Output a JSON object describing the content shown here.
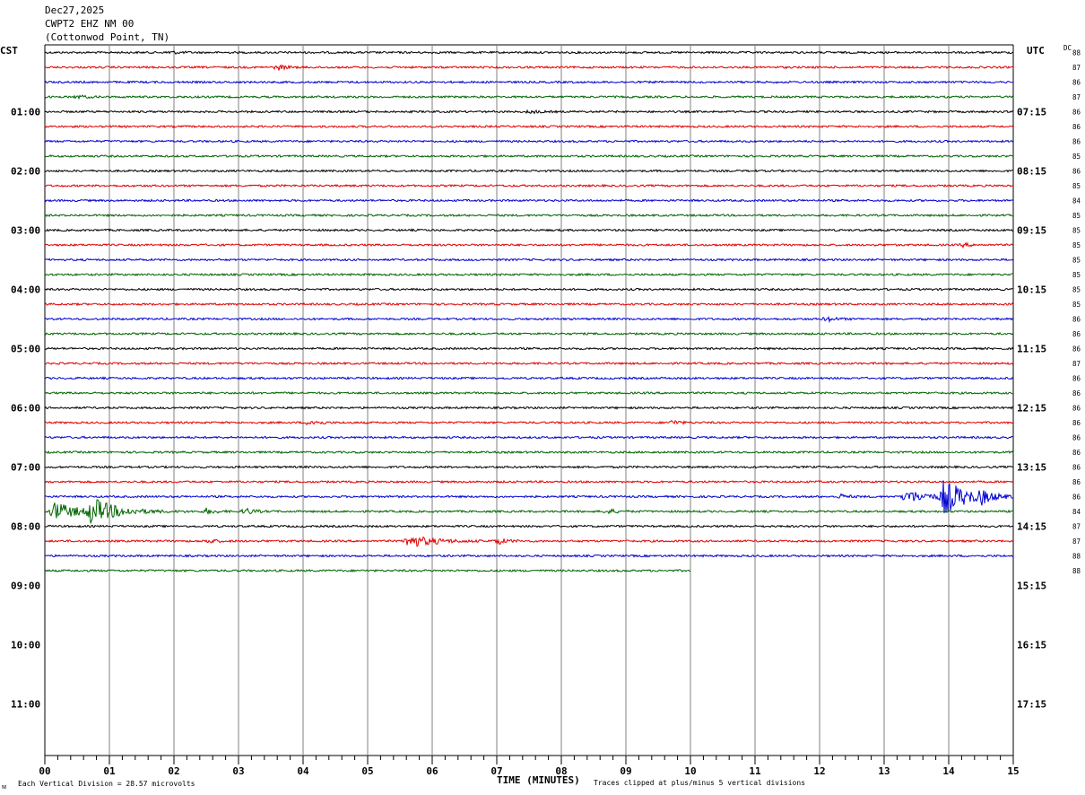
{
  "header": {
    "date": "Dec27,2025",
    "station": "CWPT2 EHZ NM 00",
    "location": "(Cottonwod Point, TN)"
  },
  "left_zone_label": "CST",
  "right_zone_label": "UTC",
  "dc_header": "DC",
  "footer": {
    "division_note": "Each Vertical Division =   28.57 microvolts",
    "clip_note": "Traces clipped at plus/minus 5 vertical divisions",
    "corner_mark": "ᴍ"
  },
  "colors": {
    "trace_cycle": [
      "#000000",
      "#e00000",
      "#0000d0",
      "#006400"
    ],
    "grid": "#808080",
    "frame": "#000000"
  },
  "chart_data": {
    "type": "line",
    "title": "",
    "xlabel": "TIME (MINUTES)",
    "ylabel": "",
    "x_ticks": [
      "00",
      "01",
      "02",
      "03",
      "04",
      "05",
      "06",
      "07",
      "08",
      "09",
      "10",
      "11",
      "12",
      "13",
      "14",
      "15"
    ],
    "xlim": [
      0,
      15
    ],
    "minutes_per_row": 15,
    "rows_total": 44,
    "rows_recorded": 36,
    "last_row_end_minute": 10,
    "cst_hour_labels": [
      "01:00",
      "02:00",
      "03:00",
      "04:00",
      "05:00",
      "06:00",
      "07:00",
      "08:00",
      "09:00",
      "10:00",
      "11:00"
    ],
    "utc_hour_labels": [
      "07:15",
      "08:15",
      "09:15",
      "10:15",
      "11:15",
      "12:15",
      "13:15",
      "14:15",
      "15:15",
      "16:15",
      "17:15"
    ],
    "dc_offsets": [
      "88",
      "87",
      "86",
      "87",
      "86",
      "86",
      "86",
      "85",
      "86",
      "85",
      "84",
      "85",
      "85",
      "85",
      "85",
      "85",
      "85",
      "85",
      "86",
      "86",
      "86",
      "87",
      "86",
      "86",
      "86",
      "86",
      "86",
      "86",
      "86",
      "86",
      "86",
      "84",
      "87",
      "87",
      "88",
      "88"
    ],
    "events": [
      {
        "row": 0,
        "minute": 1.9,
        "amplitude": 2
      },
      {
        "row": 1,
        "minute": 3.6,
        "amplitude": 3
      },
      {
        "row": 3,
        "minute": 0.5,
        "amplitude": 2
      },
      {
        "row": 4,
        "minute": 7.5,
        "amplitude": 2
      },
      {
        "row": 13,
        "minute": 14.2,
        "amplitude": 2
      },
      {
        "row": 18,
        "minute": 12.1,
        "amplitude": 3
      },
      {
        "row": 25,
        "minute": 4.1,
        "amplitude": 4
      },
      {
        "row": 25,
        "minute": 9.7,
        "amplitude": 3
      },
      {
        "row": 30,
        "minute": 12.3,
        "amplitude": 3
      },
      {
        "row": 30,
        "minute": 13.3,
        "amplitude": 8
      },
      {
        "row": 30,
        "minute": 13.9,
        "amplitude": 20
      },
      {
        "row": 30,
        "minute": 14.5,
        "amplitude": 6
      },
      {
        "row": 31,
        "minute": 0.1,
        "amplitude": 12
      },
      {
        "row": 31,
        "minute": 0.7,
        "amplitude": 15
      },
      {
        "row": 31,
        "minute": 2.5,
        "amplitude": 3
      },
      {
        "row": 31,
        "minute": 3.1,
        "amplitude": 4
      },
      {
        "row": 31,
        "minute": 8.7,
        "amplitude": 3
      },
      {
        "row": 33,
        "minute": 2.5,
        "amplitude": 3
      },
      {
        "row": 33,
        "minute": 5.6,
        "amplitude": 8
      },
      {
        "row": 33,
        "minute": 7.0,
        "amplitude": 4
      }
    ]
  }
}
